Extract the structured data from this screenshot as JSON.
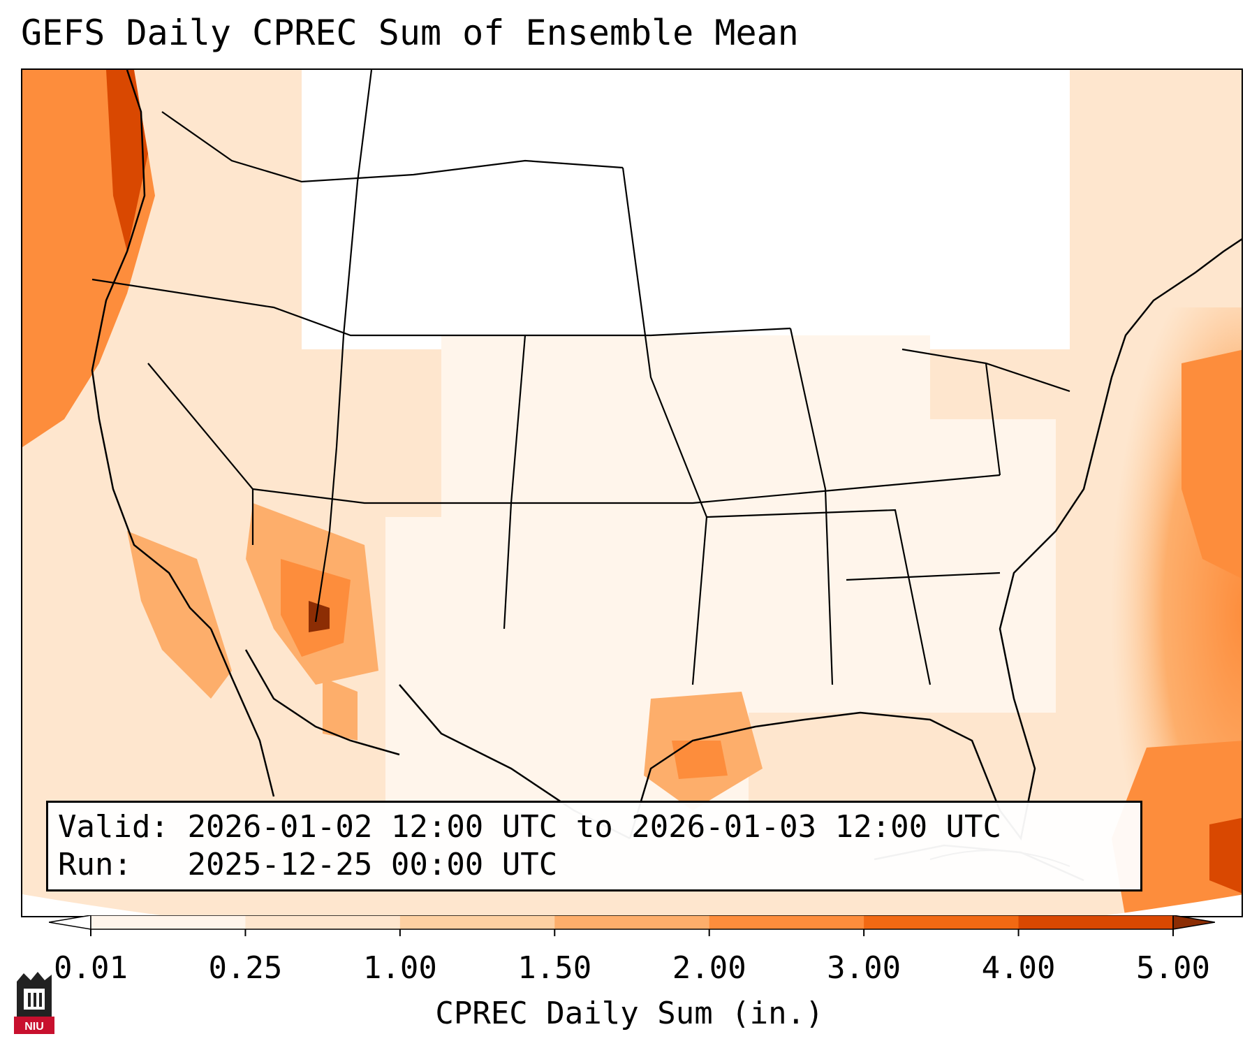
{
  "title": "GEFS Daily CPREC Sum of Ensemble Mean",
  "info": {
    "valid_label": "Valid:",
    "valid_value": "2026-01-02 12:00 UTC to 2026-01-03 12:00 UTC",
    "run_label": "Run:",
    "run_value": "2025-12-25 00:00 UTC"
  },
  "colorbar": {
    "label": "CPREC Daily Sum (in.)",
    "ticks": [
      "0.01",
      "0.25",
      "1.00",
      "1.50",
      "2.00",
      "3.00",
      "4.00",
      "5.00"
    ],
    "colors": [
      "#fff5eb",
      "#fee6ce",
      "#fdd0a2",
      "#fdae6b",
      "#fd8d3c",
      "#f16913",
      "#d94801",
      "#8c2d04"
    ],
    "extend": "both"
  },
  "logo": {
    "text": "NIU",
    "color": "#c8102e"
  },
  "map": {
    "projection": "lambert-conformal",
    "region": "CONUS",
    "field": "CPREC"
  }
}
